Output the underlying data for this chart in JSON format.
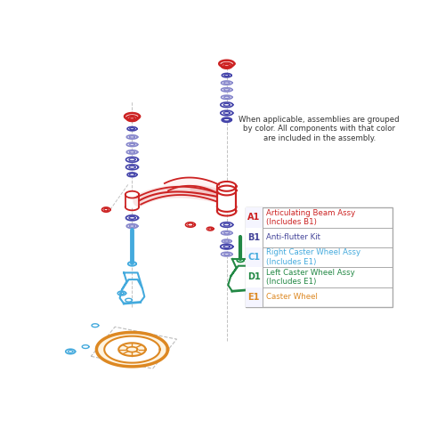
{
  "legend_note": "When applicable, assemblies are grouped\nby color. All components with that color\nare included in the assembly.",
  "legend_items": [
    {
      "code": "A1",
      "label": "Articulating Beam Assy\n(Includes B1)",
      "code_color": "#cc2222",
      "label_color": "#cc2222"
    },
    {
      "code": "B1",
      "label": "Anti-flutter Kit",
      "code_color": "#444499",
      "label_color": "#444499"
    },
    {
      "code": "C1",
      "label": "Right Caster Wheel Assy\n(Includes E1)",
      "code_color": "#44aadd",
      "label_color": "#44aadd"
    },
    {
      "code": "D1",
      "label": "Left Caster Wheel Assy\n(Includes E1)",
      "code_color": "#228844",
      "label_color": "#228844"
    },
    {
      "code": "E1",
      "label": "Caster Wheel",
      "code_color": "#dd8822",
      "label_color": "#dd8822"
    }
  ],
  "colors": {
    "red": "#cc2222",
    "purple_dark": "#4444aa",
    "purple_light": "#8888cc",
    "blue": "#44aadd",
    "green": "#228844",
    "orange": "#dd8822",
    "gray": "#999999",
    "lightgray": "#cccccc"
  }
}
